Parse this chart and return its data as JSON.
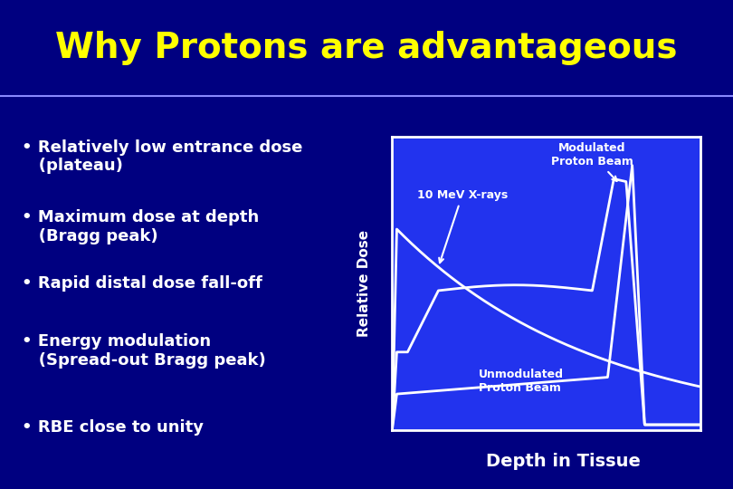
{
  "title": "Why Protons are advantageous",
  "title_color": "#FFFF00",
  "title_fontsize": 28,
  "bg_dark": "#000080",
  "bg_medium": "#1111AA",
  "bg_blue": "#2222DD",
  "plot_bg": "#2233EE",
  "plot_border": "#FFFFFF",
  "curve_color": "#FFFFFF",
  "sep_line_color": "#8888FF",
  "text_color": "#FFFFFF",
  "bullet_fontsize": 13,
  "bullet_items": [
    "• Relatively low entrance dose\n   (plateau)",
    "• Maximum dose at depth\n   (Bragg peak)",
    "• Rapid distal dose fall-off",
    "• Energy modulation\n   (Spread-out Bragg peak)",
    "• RBE close to unity"
  ],
  "ylabel": "Relative Dose",
  "xlabel": "Depth in Tissue",
  "label_xrays": "10 MeV X-rays",
  "label_modulated": "Modulated\nProton Beam",
  "label_unmodulated": "Unmodulated\nProton Beam"
}
